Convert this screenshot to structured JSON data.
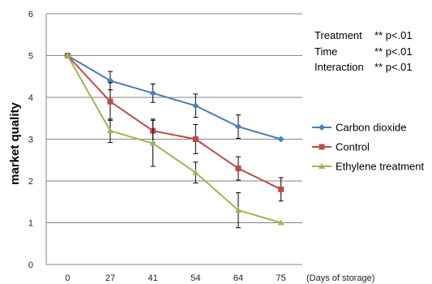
{
  "chart_data": {
    "type": "line",
    "ylabel": "market quality",
    "xunit_label": "(Days of storage)",
    "categories": [
      "0",
      "27",
      "41",
      "54",
      "64",
      "75"
    ],
    "ylim": [
      0,
      6
    ],
    "yticks": [
      0,
      1,
      2,
      3,
      4,
      5,
      6
    ],
    "grid": true,
    "legend_position": "right",
    "series": [
      {
        "name": "Carbon dioxide",
        "color": "#4a7ebb",
        "marker": "diamond",
        "values": [
          5.0,
          4.4,
          4.1,
          3.8,
          3.3,
          3.0
        ],
        "errors": [
          0,
          0.22,
          0.22,
          0.28,
          0.28,
          0
        ]
      },
      {
        "name": "Control",
        "color": "#be4b48",
        "marker": "square",
        "values": [
          5.0,
          3.9,
          3.2,
          3.0,
          2.3,
          1.8
        ],
        "errors": [
          0,
          0.45,
          0.28,
          0.35,
          0.28,
          0.28
        ]
      },
      {
        "name": "Ethylene treatment",
        "color": "#98b954",
        "marker": "triangle",
        "values": [
          5.0,
          3.2,
          2.9,
          2.2,
          1.3,
          1.0
        ],
        "errors": [
          0,
          0.28,
          0.55,
          0.25,
          0.42,
          0
        ]
      }
    ],
    "annotations": [
      {
        "label": "Treatment",
        "value": "** p<.01"
      },
      {
        "label": "Time",
        "value": "** p<.01"
      },
      {
        "label": "Interaction",
        "value": "** p<.01"
      }
    ]
  }
}
